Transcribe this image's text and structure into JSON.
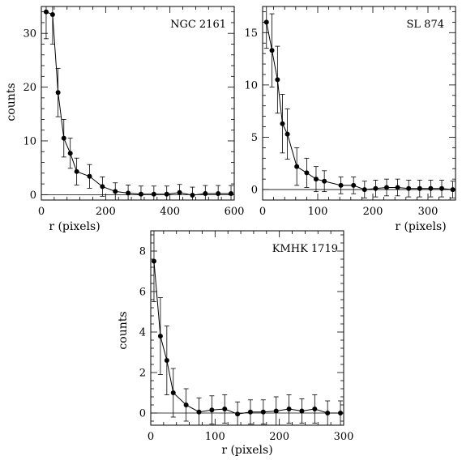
{
  "chart_data": [
    {
      "type": "scatter",
      "title": "NGC 2161",
      "xlabel": "r (pixels)",
      "ylabel": "counts",
      "xlim": [
        0,
        600
      ],
      "ylim": [
        -1,
        35
      ],
      "xticks": [
        0,
        200,
        400,
        600
      ],
      "yticks": [
        0,
        10,
        20,
        30
      ],
      "zero_line": true,
      "series": [
        {
          "x": [
            15,
            35,
            52,
            70,
            90,
            110,
            150,
            190,
            230,
            270,
            310,
            350,
            390,
            430,
            470,
            510,
            550,
            590
          ],
          "y": [
            34,
            33.5,
            19,
            10.5,
            7.7,
            4.3,
            3.4,
            1.5,
            0.6,
            0.3,
            0.1,
            0.1,
            0.1,
            0.4,
            -0.1,
            0.2,
            0.2,
            0.2
          ],
          "err": [
            5,
            5.5,
            4.5,
            3.5,
            2.8,
            2.5,
            2.2,
            1.8,
            1.6,
            1.5,
            1.5,
            1.5,
            1.5,
            1.5,
            1.5,
            1.5,
            1.5,
            1.5
          ]
        }
      ]
    },
    {
      "type": "scatter",
      "title": "SL 874",
      "xlabel": "r (pixels)",
      "ylabel": "",
      "xlim": [
        0,
        350
      ],
      "ylim": [
        -1,
        17.5
      ],
      "xticks": [
        0,
        100,
        200,
        300
      ],
      "yticks": [
        0,
        5,
        10,
        15
      ],
      "zero_line": true,
      "series": [
        {
          "x": [
            7,
            17,
            27,
            36,
            45,
            62,
            80,
            97,
            112,
            142,
            165,
            185,
            205,
            225,
            245,
            265,
            285,
            305,
            325,
            345
          ],
          "y": [
            16,
            13.3,
            10.5,
            6.3,
            5.3,
            2.2,
            1.6,
            1.0,
            0.8,
            0.4,
            0.4,
            0.0,
            0.1,
            0.2,
            0.2,
            0.1,
            0.1,
            0.1,
            0.1,
            0.0
          ],
          "err": [
            2.5,
            3.5,
            3.2,
            2.8,
            2.4,
            1.8,
            1.4,
            1.2,
            1.0,
            0.8,
            0.8,
            0.8,
            0.8,
            0.8,
            0.8,
            0.8,
            0.8,
            0.8,
            0.8,
            0.8
          ]
        }
      ]
    },
    {
      "type": "scatter",
      "title": "KMHK 1719",
      "xlabel": "r (pixels)",
      "ylabel": "counts",
      "xlim": [
        0,
        300
      ],
      "ylim": [
        -0.6,
        9
      ],
      "xticks": [
        0,
        100,
        200,
        300
      ],
      "yticks": [
        0,
        2,
        4,
        6,
        8
      ],
      "zero_line": true,
      "series": [
        {
          "x": [
            5,
            15,
            25,
            35,
            55,
            75,
            95,
            115,
            135,
            155,
            175,
            195,
            215,
            235,
            255,
            275,
            295
          ],
          "y": [
            7.5,
            3.8,
            2.6,
            1.0,
            0.4,
            0.05,
            0.15,
            0.2,
            -0.05,
            0.05,
            0.05,
            0.1,
            0.2,
            0.1,
            0.2,
            0.0,
            0.0
          ],
          "err": [
            2.0,
            1.9,
            1.7,
            1.2,
            0.8,
            0.7,
            0.7,
            0.7,
            0.6,
            0.6,
            0.6,
            0.7,
            0.7,
            0.6,
            0.7,
            0.6,
            0.6
          ]
        }
      ]
    }
  ]
}
